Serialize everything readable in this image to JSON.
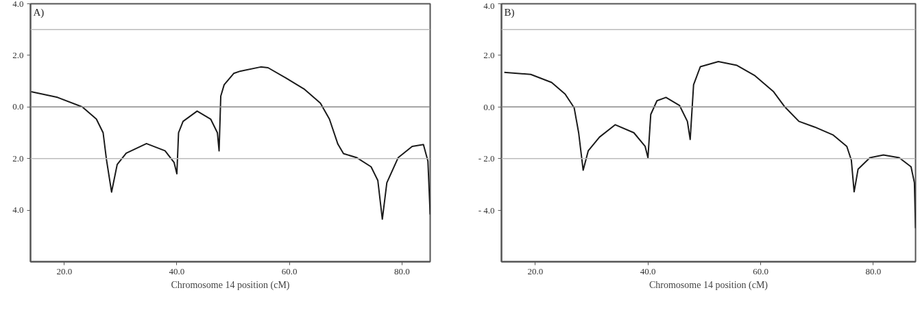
{
  "chart_data": [
    {
      "type": "line",
      "title": "A)",
      "xlabel": "Chromosome 14 position (cM)",
      "xlim": [
        14,
        85
      ],
      "ylim": [
        -6,
        4
      ],
      "xticks": [
        {
          "value": 20,
          "label": "20.0"
        },
        {
          "value": 40,
          "label": "40.0"
        },
        {
          "value": 60,
          "label": "60.0"
        },
        {
          "value": 80,
          "label": "80.0"
        }
      ],
      "yticks": [
        {
          "value": 4,
          "label": "4.0"
        },
        {
          "value": 2,
          "label": "2.0"
        },
        {
          "value": 0,
          "label": "0.0"
        },
        {
          "value": -2,
          "label": "2.0"
        },
        {
          "value": -4,
          "label": "4.0"
        }
      ],
      "grid": false,
      "marker": "none",
      "line_style": "solid",
      "ref_lines": [
        {
          "axis": "y",
          "value": 3,
          "color": "#bbbbbb"
        },
        {
          "axis": "y",
          "value": 0,
          "color": "#888888"
        },
        {
          "axis": "y",
          "value": -2,
          "color": "#bbbbbb"
        }
      ],
      "series": [
        {
          "color": "#1a1a1a",
          "x": [
            14.1,
            18.8,
            23.2,
            25.7,
            26.9,
            27.5,
            28.4,
            29.4,
            31.0,
            34.6,
            37.9,
            39.5,
            40.0,
            40.3,
            41.1,
            43.6,
            46.0,
            47.2,
            47.5,
            47.8,
            48.4,
            50.1,
            51.3,
            54.9,
            56.2,
            59.4,
            62.7,
            65.5,
            67.1,
            68.6,
            69.6,
            72.0,
            74.5,
            75.7,
            76.5,
            77.3,
            79.3,
            81.8,
            83.8,
            84.6,
            85.0
          ],
          "values": [
            0.59,
            0.37,
            0.0,
            -0.47,
            -1.0,
            -2.05,
            -3.3,
            -2.23,
            -1.79,
            -1.42,
            -1.7,
            -2.15,
            -2.59,
            -1.0,
            -0.56,
            -0.16,
            -0.47,
            -1.0,
            -1.7,
            0.42,
            0.86,
            1.3,
            1.39,
            1.55,
            1.52,
            1.12,
            0.68,
            0.15,
            -0.47,
            -1.44,
            -1.81,
            -1.97,
            -2.32,
            -2.85,
            -4.35,
            -2.94,
            -1.97,
            -1.53,
            -1.46,
            -2.1,
            -4.17
          ]
        }
      ]
    },
    {
      "type": "line",
      "title": "B)",
      "xlabel": "Chromosome 14 position (cM)",
      "xlim": [
        14,
        87.5
      ],
      "ylim": [
        -6,
        4
      ],
      "xticks": [
        {
          "value": 20,
          "label": "20.0"
        },
        {
          "value": 40,
          "label": "40.0"
        },
        {
          "value": 60,
          "label": "60.0"
        },
        {
          "value": 80,
          "label": "80.0"
        }
      ],
      "yticks": [
        {
          "value": 4,
          "label": "4.0"
        },
        {
          "value": 2,
          "label": "2.0"
        },
        {
          "value": 0,
          "label": "0.0"
        },
        {
          "value": -2,
          "label": "- 2.0"
        },
        {
          "value": -4,
          "label": "- 4.0"
        }
      ],
      "grid": false,
      "marker": "none",
      "line_style": "solid",
      "ref_lines": [
        {
          "axis": "y",
          "value": 3,
          "color": "#bbbbbb"
        },
        {
          "axis": "y",
          "value": 0,
          "color": "#888888"
        },
        {
          "axis": "y",
          "value": -2,
          "color": "#bbbbbb"
        }
      ],
      "series": [
        {
          "color": "#1a1a1a",
          "x": [
            14.5,
            19.2,
            22.9,
            25.3,
            26.9,
            27.7,
            28.5,
            29.4,
            31.4,
            34.2,
            37.5,
            39.5,
            40.0,
            40.5,
            41.6,
            43.2,
            45.6,
            47.0,
            47.5,
            48.1,
            49.3,
            52.5,
            55.8,
            59.0,
            62.3,
            64.3,
            66.8,
            69.6,
            72.9,
            75.3,
            76.1,
            76.6,
            77.3,
            79.4,
            81.8,
            84.6,
            86.7,
            87.3,
            87.5
          ],
          "values": [
            1.34,
            1.26,
            0.95,
            0.5,
            -0.03,
            -1.0,
            -2.45,
            -1.7,
            -1.17,
            -0.69,
            -1.0,
            -1.53,
            -1.97,
            -0.29,
            0.24,
            0.37,
            0.06,
            -0.56,
            -1.26,
            0.86,
            1.56,
            1.76,
            1.61,
            1.21,
            0.59,
            0.0,
            -0.56,
            -0.78,
            -1.09,
            -1.53,
            -2.06,
            -3.29,
            -2.41,
            -1.97,
            -1.86,
            -1.97,
            -2.32,
            -2.94,
            -4.7
          ]
        }
      ]
    }
  ]
}
